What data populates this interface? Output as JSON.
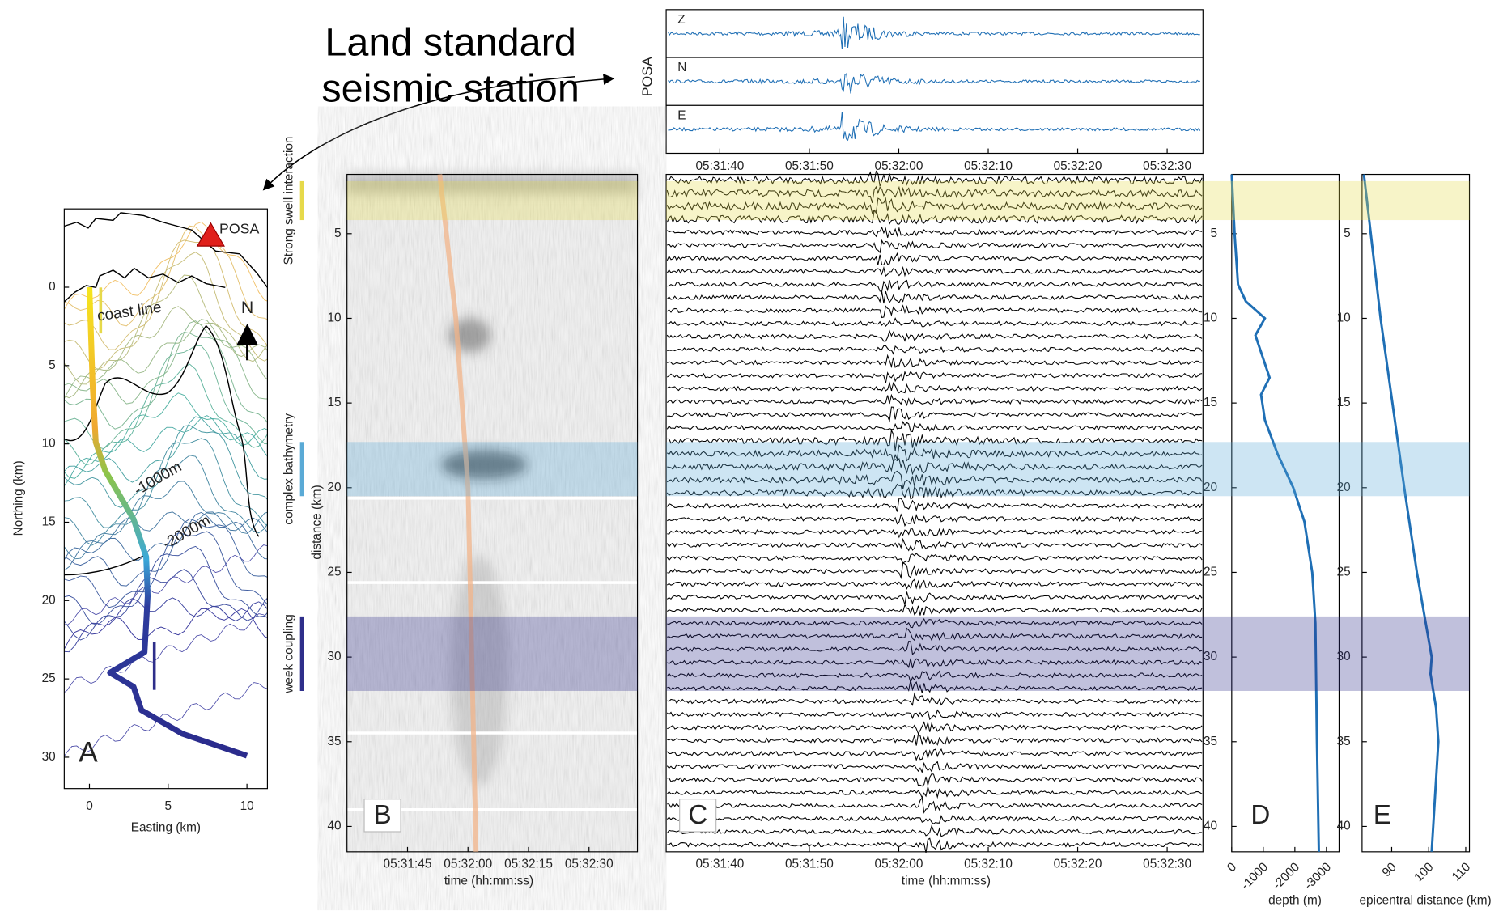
{
  "annotation": "Land standard seismic station",
  "highlights": [
    {
      "label": "Strong swell interaction",
      "from": 1.9,
      "to": 4.2,
      "color": "#e6d94a"
    },
    {
      "label": "complex bathymetry",
      "from": 17.3,
      "to": 20.5,
      "color": "#5aaad6"
    },
    {
      "label": "week coupling",
      "from": 27.6,
      "to": 32,
      "color": "#2e2e8a"
    }
  ],
  "chart_data": [
    {
      "type": "map",
      "panel_label": "A",
      "xlabel": "Easting (km)",
      "ylabel": "Northing (km)",
      "xlim": [
        -1.6,
        11.3
      ],
      "ylim": [
        -5,
        32
      ],
      "xticks": [
        0,
        5,
        10
      ],
      "yticks": [
        0,
        5,
        10,
        15,
        20,
        25,
        30
      ],
      "annotations": [
        "coast line",
        "-1000m",
        "-2000m",
        "N"
      ],
      "station": {
        "name": "POSA",
        "x": 7.7,
        "y": -3.3,
        "color": "#e0201b"
      },
      "cable": {
        "x": [
          0,
          0.2,
          0.4,
          1.0,
          2.8,
          3.6,
          3.7,
          3.5,
          1.3,
          2.8,
          3.3,
          5.9,
          10
        ],
        "y": [
          0,
          6.2,
          9.9,
          11.7,
          14.8,
          17.2,
          19.7,
          23.3,
          24.6,
          25.5,
          27.0,
          28.5,
          29.9
        ]
      }
    },
    {
      "type": "waveform",
      "ylabel": "POSA",
      "channels": [
        "Z",
        "N",
        "E"
      ],
      "color": "#1f6fb5",
      "xlim": [
        "05:31:34",
        "05:32:34"
      ],
      "xticks": [
        "05:31:40",
        "05:31:50",
        "05:32:00",
        "05:32:10",
        "05:32:20",
        "05:32:30"
      ]
    },
    {
      "type": "waterfall",
      "panel_label": "B",
      "xlabel": "time (hh:mm:ss)",
      "ylabel": "distance (km)",
      "xlim": [
        "05:31:30",
        "05:32:42"
      ],
      "xticks": [
        "05:31:45",
        "05:32:00",
        "05:32:15",
        "05:32:30"
      ],
      "ylim": [
        1.5,
        41.5
      ],
      "yticks": [
        5,
        10,
        15,
        20,
        25,
        30,
        35,
        40
      ],
      "moveout": {
        "color": "#f2b48a",
        "x": [
          "05:31:53",
          "05:31:57",
          "05:32:00",
          "05:32:02"
        ],
        "y": [
          1.5,
          10,
          20,
          41.5
        ]
      }
    },
    {
      "type": "waveform",
      "panel_label": "C",
      "xlabel": "time (hh:mm:ss)",
      "color": "#000000",
      "xlim": [
        "05:31:34",
        "05:32:34"
      ],
      "xticks": [
        "05:31:40",
        "05:31:50",
        "05:32:00",
        "05:32:10",
        "05:32:20",
        "05:32:30"
      ],
      "ylim": [
        1.5,
        41.5
      ]
    },
    {
      "type": "line",
      "panel_label": "D",
      "xlabel": "depth (m)",
      "color": "#1f6fb5",
      "xlim": [
        0,
        -3400
      ],
      "xticks": [
        0,
        -1000,
        -2000,
        -3000
      ],
      "ylim": [
        1.5,
        41.5
      ],
      "yticks": [
        5,
        10,
        15,
        20,
        25,
        30,
        35,
        40
      ],
      "x": [
        0,
        -90,
        -200,
        -450,
        -1050,
        -750,
        -1200,
        -930,
        -1050,
        -1450,
        -1950,
        -2300,
        -2550,
        -2650,
        -2700,
        -2760
      ],
      "y": [
        1.5,
        5,
        8,
        9,
        10,
        11,
        13.5,
        14.5,
        16,
        18,
        20,
        22,
        25,
        28,
        35,
        41.5
      ]
    },
    {
      "type": "line",
      "panel_label": "E",
      "xlabel": "epicentral distance (km)",
      "color": "#1f6fb5",
      "xlim": [
        82,
        111
      ],
      "xticks": [
        90,
        100,
        110
      ],
      "ylim": [
        1.5,
        41.5
      ],
      "yticks": [
        5,
        10,
        15,
        20,
        25,
        30,
        35,
        40
      ],
      "x": [
        82.5,
        87,
        93.4,
        96.8,
        100.8,
        100.5,
        102,
        102.6,
        100.8
      ],
      "y": [
        1.5,
        10,
        20,
        25,
        30,
        31,
        33,
        35,
        41.5
      ]
    }
  ]
}
